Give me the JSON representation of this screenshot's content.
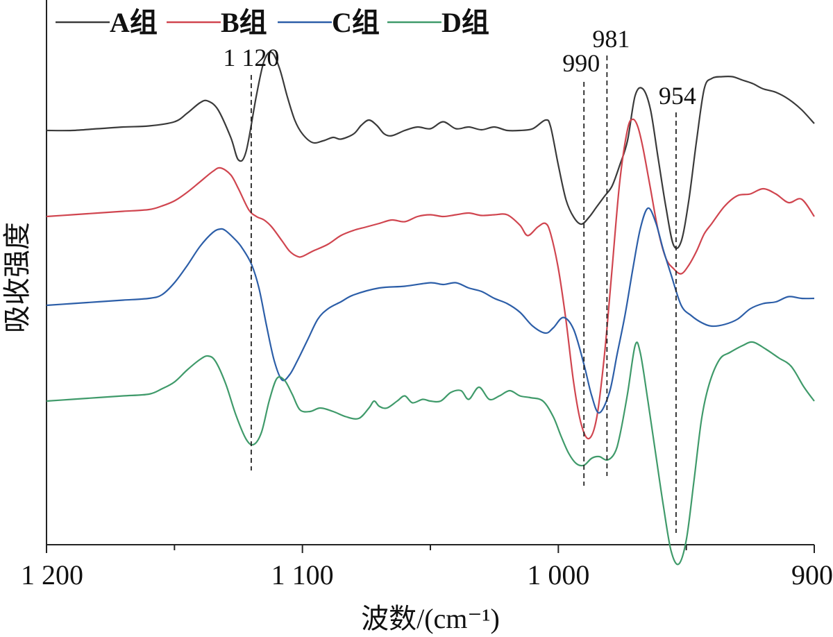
{
  "chart_data": {
    "type": "line",
    "title": "",
    "xlabel": "波数/(cm⁻¹)",
    "ylabel": "吸收强度",
    "xlim": [
      1200,
      900
    ],
    "x_reversed": true,
    "y_tick_labels": false,
    "grid": false,
    "legend_position": "top-left",
    "x_ticks": [
      1200,
      1100,
      1000,
      900
    ],
    "x_tick_labels": [
      "1 200",
      "1 100",
      "1 000",
      "900"
    ],
    "x_minor_ticks": [
      1150,
      1050,
      950
    ],
    "annotations": [
      {
        "x": 1120,
        "label": "1 120"
      },
      {
        "x": 990,
        "label": "990"
      },
      {
        "x": 981,
        "label": "981"
      },
      {
        "x": 954,
        "label": "954"
      }
    ],
    "series": [
      {
        "name": "A组",
        "color": "#3a3a3a",
        "x": [
          1200,
          1190,
          1180,
          1170,
          1160,
          1150,
          1145,
          1140,
          1137,
          1133,
          1128,
          1125,
          1122,
          1118,
          1115,
          1112,
          1109,
          1106,
          1103,
          1100,
          1096,
          1092,
          1088,
          1085,
          1080,
          1077,
          1074,
          1071,
          1068,
          1065,
          1060,
          1055,
          1050,
          1045,
          1040,
          1035,
          1030,
          1025,
          1020,
          1015,
          1010,
          1005,
          1003,
          1000,
          997,
          994,
          991,
          988,
          985,
          982,
          979,
          976,
          973,
          970,
          967,
          964,
          961,
          958,
          955,
          952,
          949,
          946,
          943,
          940,
          936,
          932,
          928,
          924,
          920,
          915,
          910,
          905,
          900
        ],
        "values": [
          0.0,
          0.0,
          0.5,
          1.0,
          1.3,
          2.5,
          5.0,
          8.0,
          8.5,
          6.0,
          -2.0,
          -8.5,
          -6.0,
          10.0,
          20.0,
          22.5,
          18.0,
          10.0,
          3.0,
          -1.0,
          -3.5,
          -3.0,
          -2.0,
          -2.5,
          -1.0,
          1.5,
          3.0,
          1.5,
          -1.0,
          -1.5,
          0.0,
          1.0,
          0.5,
          2.5,
          0.5,
          1.0,
          0.2,
          1.0,
          0.0,
          0.0,
          0.5,
          3.0,
          1.0,
          -10.0,
          -20.0,
          -25.0,
          -27.0,
          -25.0,
          -22.0,
          -19.0,
          -16.0,
          -10.0,
          -3.0,
          10.0,
          12.0,
          6.0,
          -8.0,
          -22.0,
          -33.0,
          -32.0,
          -20.0,
          -3.0,
          12.0,
          15.0,
          15.5,
          15.5,
          14.5,
          13.5,
          12.0,
          11.0,
          9.0,
          6.0,
          2.0
        ]
      },
      {
        "name": "B组",
        "color": "#d0454f",
        "x": [
          1200,
          1190,
          1180,
          1170,
          1160,
          1155,
          1150,
          1145,
          1140,
          1135,
          1132,
          1128,
          1125,
          1121,
          1118,
          1115,
          1112,
          1108,
          1105,
          1102,
          1100,
          1096,
          1090,
          1085,
          1080,
          1075,
          1070,
          1065,
          1060,
          1055,
          1050,
          1045,
          1040,
          1035,
          1030,
          1025,
          1020,
          1015,
          1012,
          1008,
          1005,
          1003,
          1000,
          997,
          994,
          991,
          988,
          985,
          982,
          979,
          976,
          973,
          971,
          969,
          967,
          964,
          961,
          958,
          955,
          952,
          949,
          946,
          943,
          940,
          935,
          930,
          925,
          920,
          915,
          910,
          905,
          900
        ],
        "values": [
          0.0,
          0.5,
          1.0,
          1.5,
          2.0,
          3.0,
          4.5,
          7.0,
          10.0,
          13.0,
          14.0,
          12.0,
          8.0,
          2.0,
          0.0,
          -1.0,
          -3.0,
          -7.0,
          -10.0,
          -11.5,
          -11.5,
          -10.0,
          -8.0,
          -5.5,
          -4.0,
          -3.0,
          -2.0,
          -1.0,
          -1.5,
          0.0,
          0.5,
          0.0,
          0.5,
          1.0,
          0.3,
          0.5,
          0.5,
          -2.5,
          -5.5,
          -3.0,
          -2.0,
          -5.0,
          -15.0,
          -30.0,
          -48.0,
          -60.0,
          -64.0,
          -58.0,
          -40.0,
          -15.0,
          10.0,
          25.0,
          28.0,
          26.0,
          20.0,
          8.0,
          -4.0,
          -12.0,
          -15.0,
          -16.5,
          -14.0,
          -10.0,
          -5.0,
          -2.0,
          3.0,
          6.0,
          6.5,
          8.0,
          6.5,
          4.0,
          5.0,
          0.0
        ]
      },
      {
        "name": "C组",
        "color": "#2c5ea8",
        "x": [
          1200,
          1190,
          1180,
          1170,
          1160,
          1155,
          1150,
          1145,
          1140,
          1135,
          1132,
          1130,
          1127,
          1124,
          1120,
          1117,
          1114,
          1111,
          1108,
          1105,
          1102,
          1098,
          1094,
          1090,
          1085,
          1080,
          1070,
          1060,
          1050,
          1045,
          1040,
          1035,
          1030,
          1025,
          1020,
          1015,
          1010,
          1005,
          1002,
          998,
          994,
          990,
          987,
          984,
          980,
          977,
          974,
          971,
          968,
          965,
          962,
          959,
          956,
          952,
          948,
          944,
          940,
          935,
          930,
          925,
          920,
          915,
          910,
          905,
          900
        ],
        "values": [
          0.0,
          0.5,
          1.0,
          1.5,
          2.0,
          3.0,
          6.5,
          11.5,
          17.0,
          21.0,
          22.0,
          21.5,
          19.5,
          17.0,
          12.0,
          5.0,
          -6.0,
          -16.0,
          -21.5,
          -20.0,
          -16.0,
          -10.0,
          -4.0,
          -1.0,
          1.0,
          3.0,
          5.0,
          5.5,
          6.5,
          6.0,
          6.5,
          5.0,
          4.0,
          2.0,
          0.5,
          -2.0,
          -6.0,
          -8.0,
          -6.5,
          -3.5,
          -7.0,
          -17.0,
          -26.0,
          -31.0,
          -25.0,
          -14.0,
          -3.0,
          10.0,
          22.0,
          28.0,
          24.0,
          16.0,
          9.0,
          0.0,
          -3.0,
          -5.0,
          -6.0,
          -5.5,
          -4.0,
          -1.0,
          0.5,
          1.0,
          2.5,
          2.0,
          2.0
        ]
      },
      {
        "name": "D组",
        "color": "#3f9a6a",
        "x": [
          1200,
          1190,
          1180,
          1170,
          1160,
          1155,
          1150,
          1145,
          1140,
          1137,
          1134,
          1130,
          1126,
          1122,
          1119,
          1116,
          1113,
          1110,
          1107,
          1104,
          1101,
          1097,
          1093,
          1088,
          1083,
          1078,
          1074,
          1072,
          1070,
          1067,
          1063,
          1060,
          1057,
          1053,
          1050,
          1046,
          1042,
          1038,
          1035,
          1031,
          1027,
          1023,
          1019,
          1015,
          1011,
          1006,
          1002,
          999,
          996,
          993,
          990,
          987,
          984,
          981,
          978,
          976,
          973,
          970,
          968,
          965,
          962,
          959,
          956,
          953,
          950,
          947,
          944,
          941,
          937,
          933,
          928,
          924,
          919,
          914,
          909,
          904,
          900
        ],
        "values": [
          0.0,
          0.5,
          1.0,
          1.5,
          2.0,
          3.5,
          5.5,
          9.0,
          12.0,
          13.0,
          11.5,
          5.0,
          -4.0,
          -11.0,
          -12.5,
          -9.0,
          0.0,
          6.5,
          6.0,
          2.0,
          -2.5,
          -3.0,
          -2.0,
          -3.0,
          -4.5,
          -5.0,
          -2.0,
          0.0,
          -1.5,
          -2.0,
          0.0,
          1.5,
          -0.5,
          0.5,
          0.0,
          0.0,
          2.5,
          3.0,
          0.5,
          4.0,
          0.5,
          1.5,
          3.0,
          1.5,
          1.0,
          0.0,
          -4.5,
          -10.0,
          -15.0,
          -18.0,
          -18.5,
          -16.5,
          -16.0,
          -17.0,
          -15.0,
          -10.0,
          2.0,
          16.0,
          14.0,
          0.0,
          -15.0,
          -30.0,
          -43.0,
          -47.0,
          -40.0,
          -23.0,
          -5.0,
          5.0,
          12.0,
          14.0,
          16.0,
          17.0,
          15.0,
          12.5,
          10.0,
          4.0,
          0.0
        ]
      }
    ]
  }
}
